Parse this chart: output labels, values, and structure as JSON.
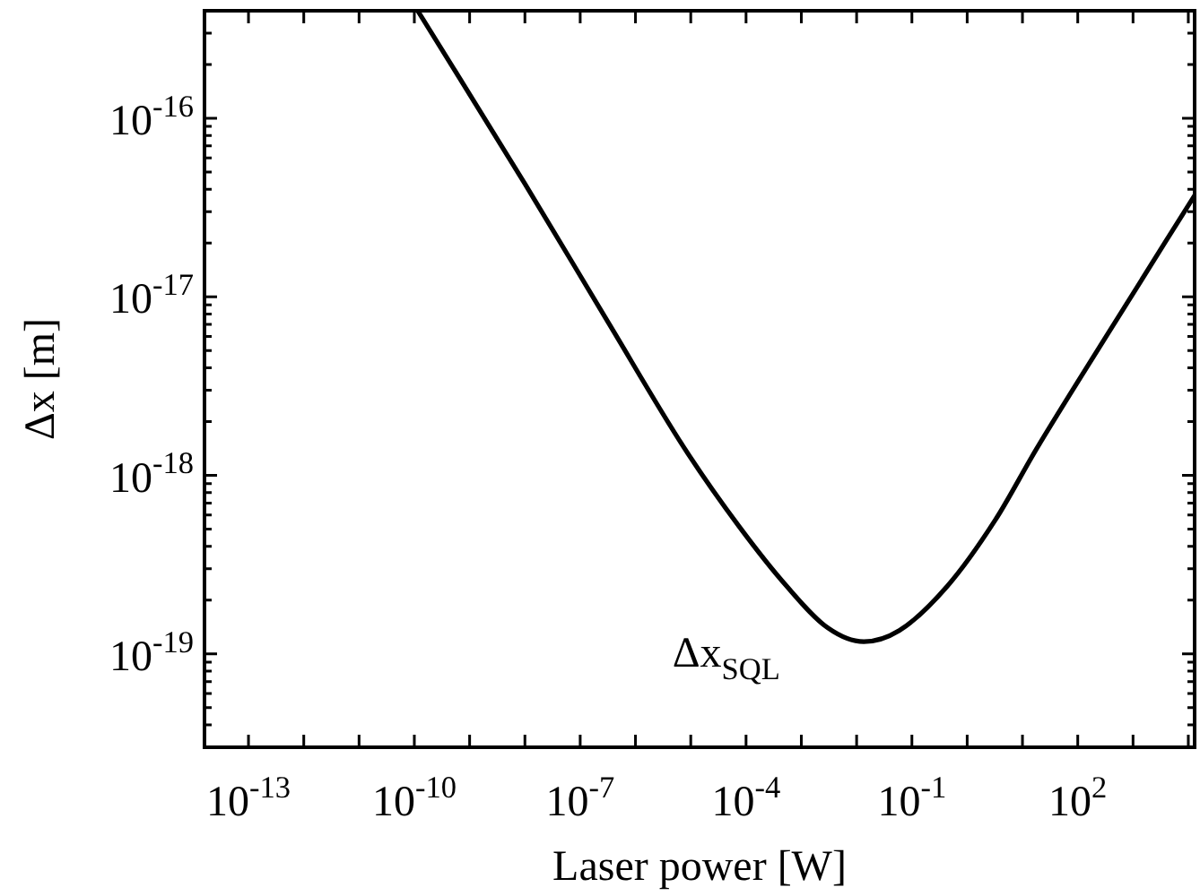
{
  "chart_data": {
    "type": "line",
    "xlabel": "Laser power [W]",
    "ylabel": "Δx [m]",
    "log": "xy",
    "grid": false,
    "legend": false,
    "marker": "none",
    "line_style": "solid",
    "xlim": [
      1.6e-14,
      13000.0
    ],
    "ylim": [
      3e-20,
      4e-16
    ],
    "xticks": [
      {
        "value": 1e-13,
        "label": "10$^{-13}$"
      },
      {
        "value": 1e-12,
        "label": null
      },
      {
        "value": 1e-11,
        "label": null
      },
      {
        "value": 1e-10,
        "label": "10$^{-10}$"
      },
      {
        "value": 1e-09,
        "label": null
      },
      {
        "value": 1e-08,
        "label": null
      },
      {
        "value": 1e-07,
        "label": "10$^{-7}$"
      },
      {
        "value": 1e-06,
        "label": null
      },
      {
        "value": 1e-05,
        "label": null
      },
      {
        "value": 0.0001,
        "label": "10$^{-4}$"
      },
      {
        "value": 0.001,
        "label": null
      },
      {
        "value": 0.01,
        "label": null
      },
      {
        "value": 0.1,
        "label": "10$^{-1}$"
      },
      {
        "value": 1,
        "label": null
      },
      {
        "value": 10,
        "label": null
      },
      {
        "value": 100,
        "label": "10$^{2}$"
      },
      {
        "value": 1000,
        "label": null
      },
      {
        "value": 10000,
        "label": null
      }
    ],
    "yticks": [
      {
        "value": 3e-20,
        "label": null
      },
      {
        "value": 4e-20,
        "label": null
      },
      {
        "value": 5e-20,
        "label": null
      },
      {
        "value": 6e-20,
        "label": null
      },
      {
        "value": 7e-20,
        "label": null
      },
      {
        "value": 8e-20,
        "label": null
      },
      {
        "value": 9e-20,
        "label": null
      },
      {
        "value": 1e-19,
        "label": "10$^{-19}$"
      },
      {
        "value": 2e-19,
        "label": null
      },
      {
        "value": 3e-19,
        "label": null
      },
      {
        "value": 4e-19,
        "label": null
      },
      {
        "value": 5e-19,
        "label": null
      },
      {
        "value": 6e-19,
        "label": null
      },
      {
        "value": 7e-19,
        "label": null
      },
      {
        "value": 8e-19,
        "label": null
      },
      {
        "value": 9e-19,
        "label": null
      },
      {
        "value": 1e-18,
        "label": "10$^{-18}$"
      },
      {
        "value": 2e-18,
        "label": null
      },
      {
        "value": 3e-18,
        "label": null
      },
      {
        "value": 4e-18,
        "label": null
      },
      {
        "value": 5e-18,
        "label": null
      },
      {
        "value": 6e-18,
        "label": null
      },
      {
        "value": 7e-18,
        "label": null
      },
      {
        "value": 8e-18,
        "label": null
      },
      {
        "value": 9e-18,
        "label": null
      },
      {
        "value": 1e-17,
        "label": "10$^{-17}$"
      },
      {
        "value": 2e-17,
        "label": null
      },
      {
        "value": 3e-17,
        "label": null
      },
      {
        "value": 4e-17,
        "label": null
      },
      {
        "value": 5e-17,
        "label": null
      },
      {
        "value": 6e-17,
        "label": null
      },
      {
        "value": 7e-17,
        "label": null
      },
      {
        "value": 8e-17,
        "label": null
      },
      {
        "value": 9e-17,
        "label": null
      },
      {
        "value": 1e-16,
        "label": "10$^{-16}$"
      },
      {
        "value": 2e-16,
        "label": null
      },
      {
        "value": 3e-16,
        "label": null
      },
      {
        "value": 4e-16,
        "label": null
      }
    ],
    "annotations": [
      "Δx$_{SQL}$"
    ],
    "series": [
      {
        "color": "#000000",
        "x": [
          1.15e-10,
          1e-08,
          3.2e-07,
          7.9e-06,
          7.4e-05,
          0.00054,
          0.003,
          0.0135,
          0.059,
          0.44,
          3.2,
          17.8,
          316,
          13000.0
        ],
        "values": [
          4e-16,
          4.3e-17,
          7.2e-18,
          1.4e-18,
          5.2e-19,
          2.4e-19,
          1.4e-19,
          1.17e-19,
          1.35e-19,
          2.4e-19,
          5.6e-19,
          1.4e-18,
          5.9e-18,
          3.7e-17
        ]
      }
    ]
  }
}
